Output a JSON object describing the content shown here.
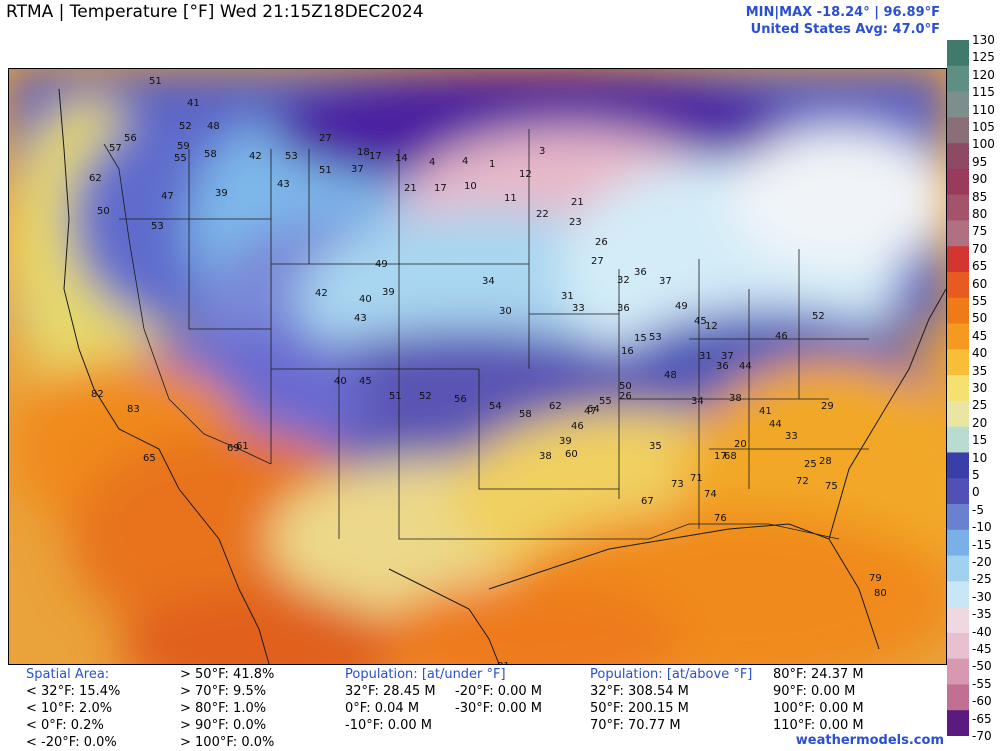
{
  "header": {
    "title": "RTMA | Temperature [°F]  Wed 21:15Z18DEC2024",
    "minmax": "MIN|MAX -18.24° | 96.89°F",
    "average": "United States Avg: 47.0°F"
  },
  "colorbar": {
    "ticks": [
      "130",
      "125",
      "120",
      "115",
      "110",
      "105",
      "100",
      "95",
      "90",
      "85",
      "80",
      "75",
      "70",
      "65",
      "60",
      "55",
      "50",
      "45",
      "40",
      "35",
      "30",
      "25",
      "20",
      "15",
      "10",
      "5",
      "0",
      "-5",
      "-10",
      "-15",
      "-20",
      "-25",
      "-30",
      "-35",
      "-40",
      "-45",
      "-50",
      "-55",
      "-60",
      "-65",
      "-70"
    ],
    "colors": [
      "#3f7a6a",
      "#5f8f83",
      "#7d8f8c",
      "#8a6f78",
      "#8f4a63",
      "#9a3b5c",
      "#a3546a",
      "#b0707f",
      "#d43530",
      "#e85a20",
      "#f07a18",
      "#f59a20",
      "#f8be38",
      "#f5e070",
      "#e8e6a0",
      "#b8dcd0",
      "#3a3ea8",
      "#5050b5",
      "#6a80d0",
      "#7ab0e8",
      "#a0d2f0",
      "#c8e6f5",
      "#f0d8e0",
      "#e8c0d0",
      "#d898b0",
      "#c07090",
      "#5a1a80"
    ]
  },
  "map_labels": [
    {
      "v": "51"
    },
    {
      "v": "41"
    },
    {
      "v": "52"
    },
    {
      "v": "48"
    },
    {
      "v": "56"
    },
    {
      "v": "59"
    },
    {
      "v": "55"
    },
    {
      "v": "58"
    },
    {
      "v": "57"
    },
    {
      "v": "62"
    },
    {
      "v": "53"
    },
    {
      "v": "50"
    },
    {
      "v": "47"
    },
    {
      "v": "39"
    },
    {
      "v": "42"
    },
    {
      "v": "53"
    },
    {
      "v": "43"
    },
    {
      "v": "27"
    },
    {
      "v": "51"
    },
    {
      "v": "37"
    },
    {
      "v": "18"
    },
    {
      "v": "17"
    },
    {
      "v": "14"
    },
    {
      "v": "4"
    },
    {
      "v": "4"
    },
    {
      "v": "1"
    },
    {
      "v": "3"
    },
    {
      "v": "12"
    },
    {
      "v": "21"
    },
    {
      "v": "17"
    },
    {
      "v": "10"
    },
    {
      "v": "11"
    },
    {
      "v": "22"
    },
    {
      "v": "23"
    },
    {
      "v": "21"
    },
    {
      "v": "26"
    },
    {
      "v": "27"
    },
    {
      "v": "32"
    },
    {
      "v": "36"
    },
    {
      "v": "45"
    },
    {
      "v": "37"
    },
    {
      "v": "49"
    },
    {
      "v": "53"
    },
    {
      "v": "48"
    },
    {
      "v": "50"
    },
    {
      "v": "55"
    },
    {
      "v": "47"
    },
    {
      "v": "46"
    },
    {
      "v": "39"
    },
    {
      "v": "38"
    },
    {
      "v": "34"
    },
    {
      "v": "30"
    },
    {
      "v": "31"
    },
    {
      "v": "33"
    },
    {
      "v": "36"
    },
    {
      "v": "42"
    },
    {
      "v": "40"
    },
    {
      "v": "49"
    },
    {
      "v": "43"
    },
    {
      "v": "39"
    },
    {
      "v": "40"
    },
    {
      "v": "45"
    },
    {
      "v": "51"
    },
    {
      "v": "52"
    },
    {
      "v": "56"
    },
    {
      "v": "54"
    },
    {
      "v": "58"
    },
    {
      "v": "62"
    },
    {
      "v": "60"
    },
    {
      "v": "64"
    },
    {
      "v": "67"
    },
    {
      "v": "73"
    },
    {
      "v": "76"
    },
    {
      "v": "74"
    },
    {
      "v": "71"
    },
    {
      "v": "68"
    },
    {
      "v": "72"
    },
    {
      "v": "75"
    },
    {
      "v": "79"
    },
    {
      "v": "80"
    },
    {
      "v": "81"
    },
    {
      "v": "82"
    },
    {
      "v": "83"
    },
    {
      "v": "65"
    },
    {
      "v": "69"
    },
    {
      "v": "61"
    },
    {
      "v": "35"
    },
    {
      "v": "38"
    },
    {
      "v": "41"
    },
    {
      "v": "44"
    },
    {
      "v": "33"
    },
    {
      "v": "29"
    },
    {
      "v": "25"
    },
    {
      "v": "28"
    },
    {
      "v": "26"
    },
    {
      "v": "17"
    },
    {
      "v": "20"
    },
    {
      "v": "16"
    },
    {
      "v": "15"
    },
    {
      "v": "12"
    },
    {
      "v": "31"
    },
    {
      "v": "37"
    },
    {
      "v": "34"
    },
    {
      "v": "36"
    },
    {
      "v": "44"
    },
    {
      "v": "46"
    },
    {
      "v": "52"
    }
  ],
  "stats": {
    "spatial_header": "Spatial Area:",
    "spatial_col1": [
      "< 32°F: 15.4%",
      "< 10°F: 2.0%",
      "< 0°F: 0.2%",
      "< -20°F: 0.0%"
    ],
    "spatial_col2": [
      "> 50°F: 41.8%",
      "> 70°F: 9.5%",
      "> 80°F: 1.0%",
      "> 90°F: 0.0%",
      "> 100°F: 0.0%"
    ],
    "pop_under_header": "Population: [at/under °F]",
    "pop_under_col1": [
      "32°F: 28.45 M",
      "0°F: 0.04 M",
      "-10°F: 0.00 M"
    ],
    "pop_under_col2": [
      "-20°F: 0.00 M",
      "-30°F: 0.00 M"
    ],
    "pop_above_header": "Population: [at/above °F]",
    "pop_above_col1": [
      "32°F: 308.54 M",
      "50°F: 200.15 M",
      "70°F: 70.77 M"
    ],
    "pop_above_col2": [
      "80°F: 24.37 M",
      "90°F: 0.00 M",
      "100°F: 0.00 M",
      "110°F: 0.00 M"
    ]
  },
  "credit": "weathermodels.com"
}
